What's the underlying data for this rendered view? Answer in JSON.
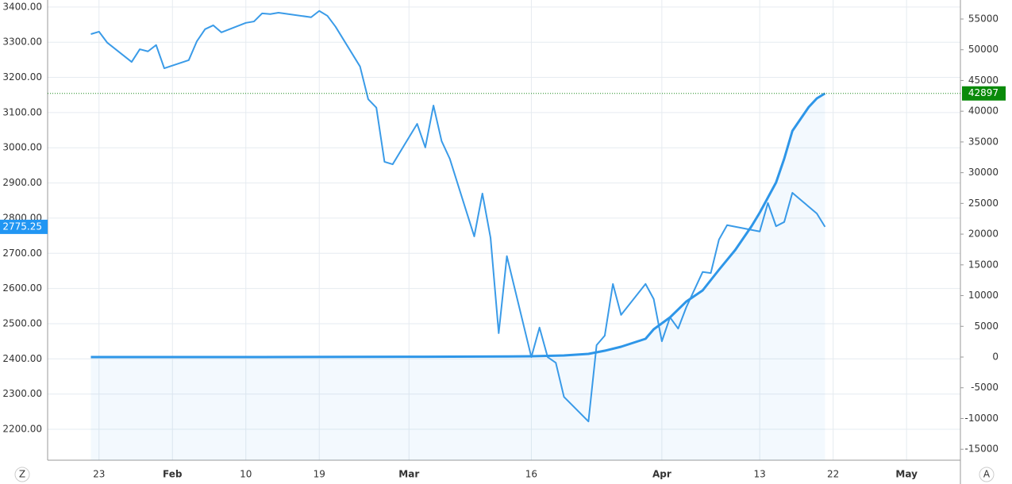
{
  "chart_data": {
    "type": "line",
    "xlim": [
      -6.3,
      105.6
    ],
    "xticks": [
      {
        "value": 0,
        "label": "23"
      },
      {
        "value": 9,
        "label": "Feb"
      },
      {
        "value": 18,
        "label": "10"
      },
      {
        "value": 27,
        "label": "19"
      },
      {
        "value": 38,
        "label": "Mar"
      },
      {
        "value": 53,
        "label": "16"
      },
      {
        "value": 69,
        "label": "Apr"
      },
      {
        "value": 81,
        "label": "13"
      },
      {
        "value": 90,
        "label": "22"
      },
      {
        "value": 99,
        "label": "May"
      }
    ],
    "ylim": [
      2112,
      3420
    ],
    "yticks": [
      {
        "value": 2200,
        "label": "2200.00"
      },
      {
        "value": 2300,
        "label": "2300.00"
      },
      {
        "value": 2400,
        "label": "2400.00"
      },
      {
        "value": 2500,
        "label": "2500.00"
      },
      {
        "value": 2600,
        "label": "2600.00"
      },
      {
        "value": 2700,
        "label": "2700.00"
      },
      {
        "value": 2800,
        "label": "2800.00"
      },
      {
        "value": 2900,
        "label": "2900.00"
      },
      {
        "value": 3000,
        "label": "3000.00"
      },
      {
        "value": 3100,
        "label": "3100.00"
      },
      {
        "value": 3200,
        "label": "3200.00"
      },
      {
        "value": 3300,
        "label": "3300.00"
      },
      {
        "value": 3400,
        "label": "3400.00"
      }
    ],
    "y2lim": [
      -16783,
      58096
    ],
    "y2ticks": [
      -15000,
      -10000,
      -5000,
      0,
      5000,
      10000,
      15000,
      20000,
      25000,
      30000,
      35000,
      40000,
      45000,
      50000,
      55000
    ],
    "grid": true,
    "series": [
      {
        "color": "#3a9be8",
        "x": [
          -1,
          0,
          1,
          4,
          5,
          6,
          7,
          8,
          11,
          12,
          13,
          14,
          15,
          18,
          19,
          20,
          21,
          22,
          26,
          27,
          28,
          29,
          32,
          33,
          34,
          35,
          36,
          39,
          40,
          41,
          42,
          43,
          46,
          47,
          48,
          49,
          50,
          53,
          54,
          55,
          56,
          57,
          60,
          61,
          62,
          63,
          64,
          67,
          68,
          69,
          70,
          71,
          72,
          74,
          75,
          76,
          77,
          81,
          82,
          83,
          84,
          85,
          88,
          89
        ],
        "values": [
          3323,
          3330,
          3299,
          3244,
          3280,
          3274,
          3292,
          3226,
          3249,
          3303,
          3337,
          3348,
          3328,
          3355,
          3359,
          3382,
          3380,
          3384,
          3371,
          3389,
          3375,
          3344,
          3231,
          3138,
          3114,
          2960,
          2953,
          3068,
          3001,
          3120,
          3019,
          2969,
          2748,
          2870,
          2744,
          2473,
          2692,
          2405,
          2489,
          2405,
          2389,
          2292,
          2222,
          2439,
          2466,
          2613,
          2525,
          2613,
          2570,
          2450,
          2518,
          2486,
          2547,
          2647,
          2644,
          2739,
          2780,
          2762,
          2843,
          2777,
          2789,
          2872,
          2813,
          2775.25
        ]
      },
      {
        "color": "#2e96e8",
        "axis": "y2",
        "area": true,
        "x": [
          -1,
          20,
          40,
          50,
          53,
          57,
          60,
          62,
          64,
          67,
          68,
          70,
          72,
          74,
          76,
          78,
          80,
          81,
          83,
          84,
          85,
          86,
          87,
          88,
          89
        ],
        "values": [
          0,
          0,
          50,
          100,
          129,
          258,
          516,
          1033,
          1678,
          2970,
          4519,
          6455,
          9037,
          10844,
          14201,
          17428,
          21301,
          23496,
          28402,
          32275,
          36793,
          38730,
          40666,
          42086,
          42897
        ]
      }
    ]
  },
  "controls": [
    "Z",
    "A"
  ]
}
